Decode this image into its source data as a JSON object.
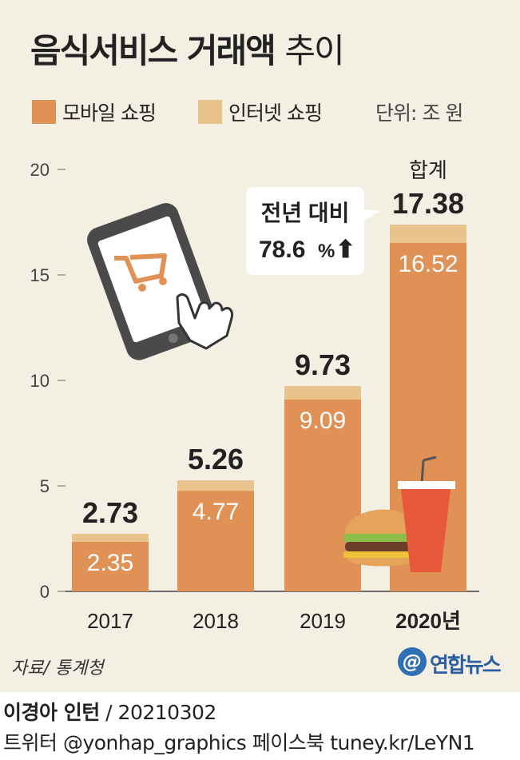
{
  "title_bold": "음식서비스 거래액",
  "title_light": "추이",
  "legend": [
    {
      "label": "모바일 쇼핑",
      "color": "#e09155"
    },
    {
      "label": "인터넷 쇼핑",
      "color": "#e9c38c"
    }
  ],
  "unit": "단위: 조 원",
  "callout": {
    "line1": "전년 대비",
    "line2": "78.6",
    "percent": "%",
    "arrow": "⬆"
  },
  "total_label": "합계",
  "source": "자료/ 통계청",
  "logo": "연합뉴스",
  "logo_mark": "@",
  "byline": {
    "author": "이경아 인턴",
    "date": "/ 20210302"
  },
  "social": "트위터 @yonhap_graphics  페이스북 tuney.kr/LeYN1",
  "chart_data": {
    "type": "bar",
    "stacked": true,
    "categories": [
      "2017",
      "2018",
      "2019",
      "2020년"
    ],
    "series": [
      {
        "name": "모바일 쇼핑",
        "values": [
          2.35,
          4.77,
          9.09,
          16.52
        ],
        "color": "#e09155"
      },
      {
        "name": "인터넷 쇼핑",
        "values": [
          0.38,
          0.49,
          0.64,
          0.86
        ],
        "color": "#e9c38c"
      }
    ],
    "totals": [
      2.73,
      5.26,
      9.73,
      17.38
    ],
    "mobile_labels": [
      "2.35",
      "4.77",
      "9.09",
      "16.52"
    ],
    "total_labels": [
      "2.73",
      "5.26",
      "9.73",
      "17.38"
    ],
    "yticks": [
      "0",
      "5",
      "10",
      "15",
      "20"
    ],
    "ylim": [
      0,
      20
    ]
  }
}
